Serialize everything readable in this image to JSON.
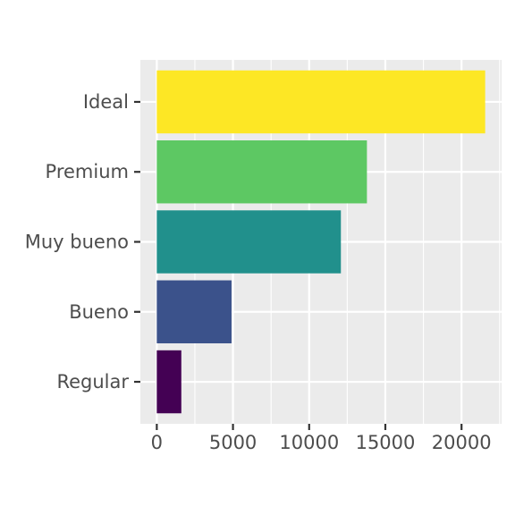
{
  "chart_data": {
    "type": "bar",
    "orientation": "horizontal",
    "title": "",
    "xlabel": "",
    "ylabel": "",
    "categories": [
      "Regular",
      "Bueno",
      "Muy bueno",
      "Premium",
      "Ideal"
    ],
    "values": [
      1610,
      4906,
      12082,
      13791,
      21551
    ],
    "colors": [
      "#440154",
      "#3B528B",
      "#21908C",
      "#5DC863",
      "#FDE725"
    ],
    "xlim": [
      -1077.55,
      22628.55
    ],
    "x_ticks": [
      0,
      5000,
      10000,
      15000,
      20000
    ],
    "x_tick_labels": [
      "0",
      "5000",
      "10000",
      "15000",
      "20000"
    ],
    "grid": true,
    "legend": "none",
    "panel_background": "#EBEBEB",
    "grid_color": "#FFFFFF"
  }
}
